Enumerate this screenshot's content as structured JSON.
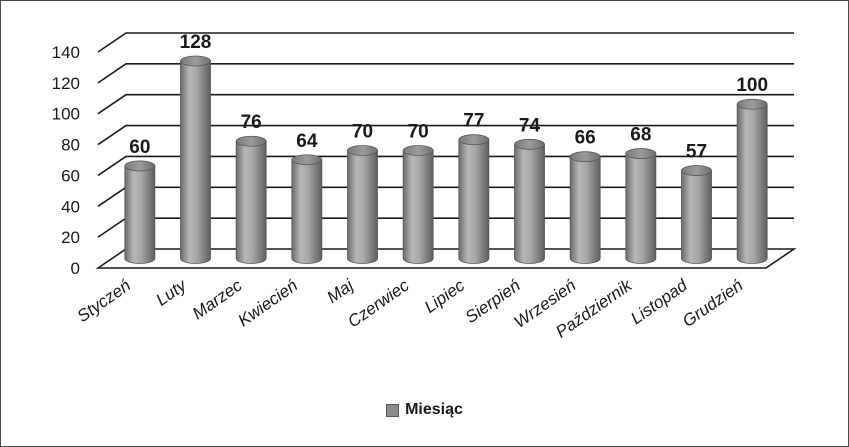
{
  "chart_data": {
    "type": "bar",
    "style": "3d-cylinder",
    "categories": [
      "Styczeń",
      "Luty",
      "Marzec",
      "Kwiecień",
      "Maj",
      "Czerwiec",
      "Lipiec",
      "Sierpień",
      "Wrzesień",
      "Październik",
      "Listopad",
      "Grudzień"
    ],
    "series": [
      {
        "name": "Miesiąc",
        "values": [
          60,
          128,
          76,
          64,
          70,
          70,
          77,
          74,
          66,
          68,
          57,
          100
        ]
      }
    ],
    "ylim": [
      0,
      140
    ],
    "yticks": [
      0,
      20,
      40,
      60,
      80,
      100,
      120,
      140
    ],
    "grid": true,
    "legend_position": "bottom",
    "colors": {
      "bar": "#8c8c8c",
      "grid": "#1a1a1a"
    }
  }
}
